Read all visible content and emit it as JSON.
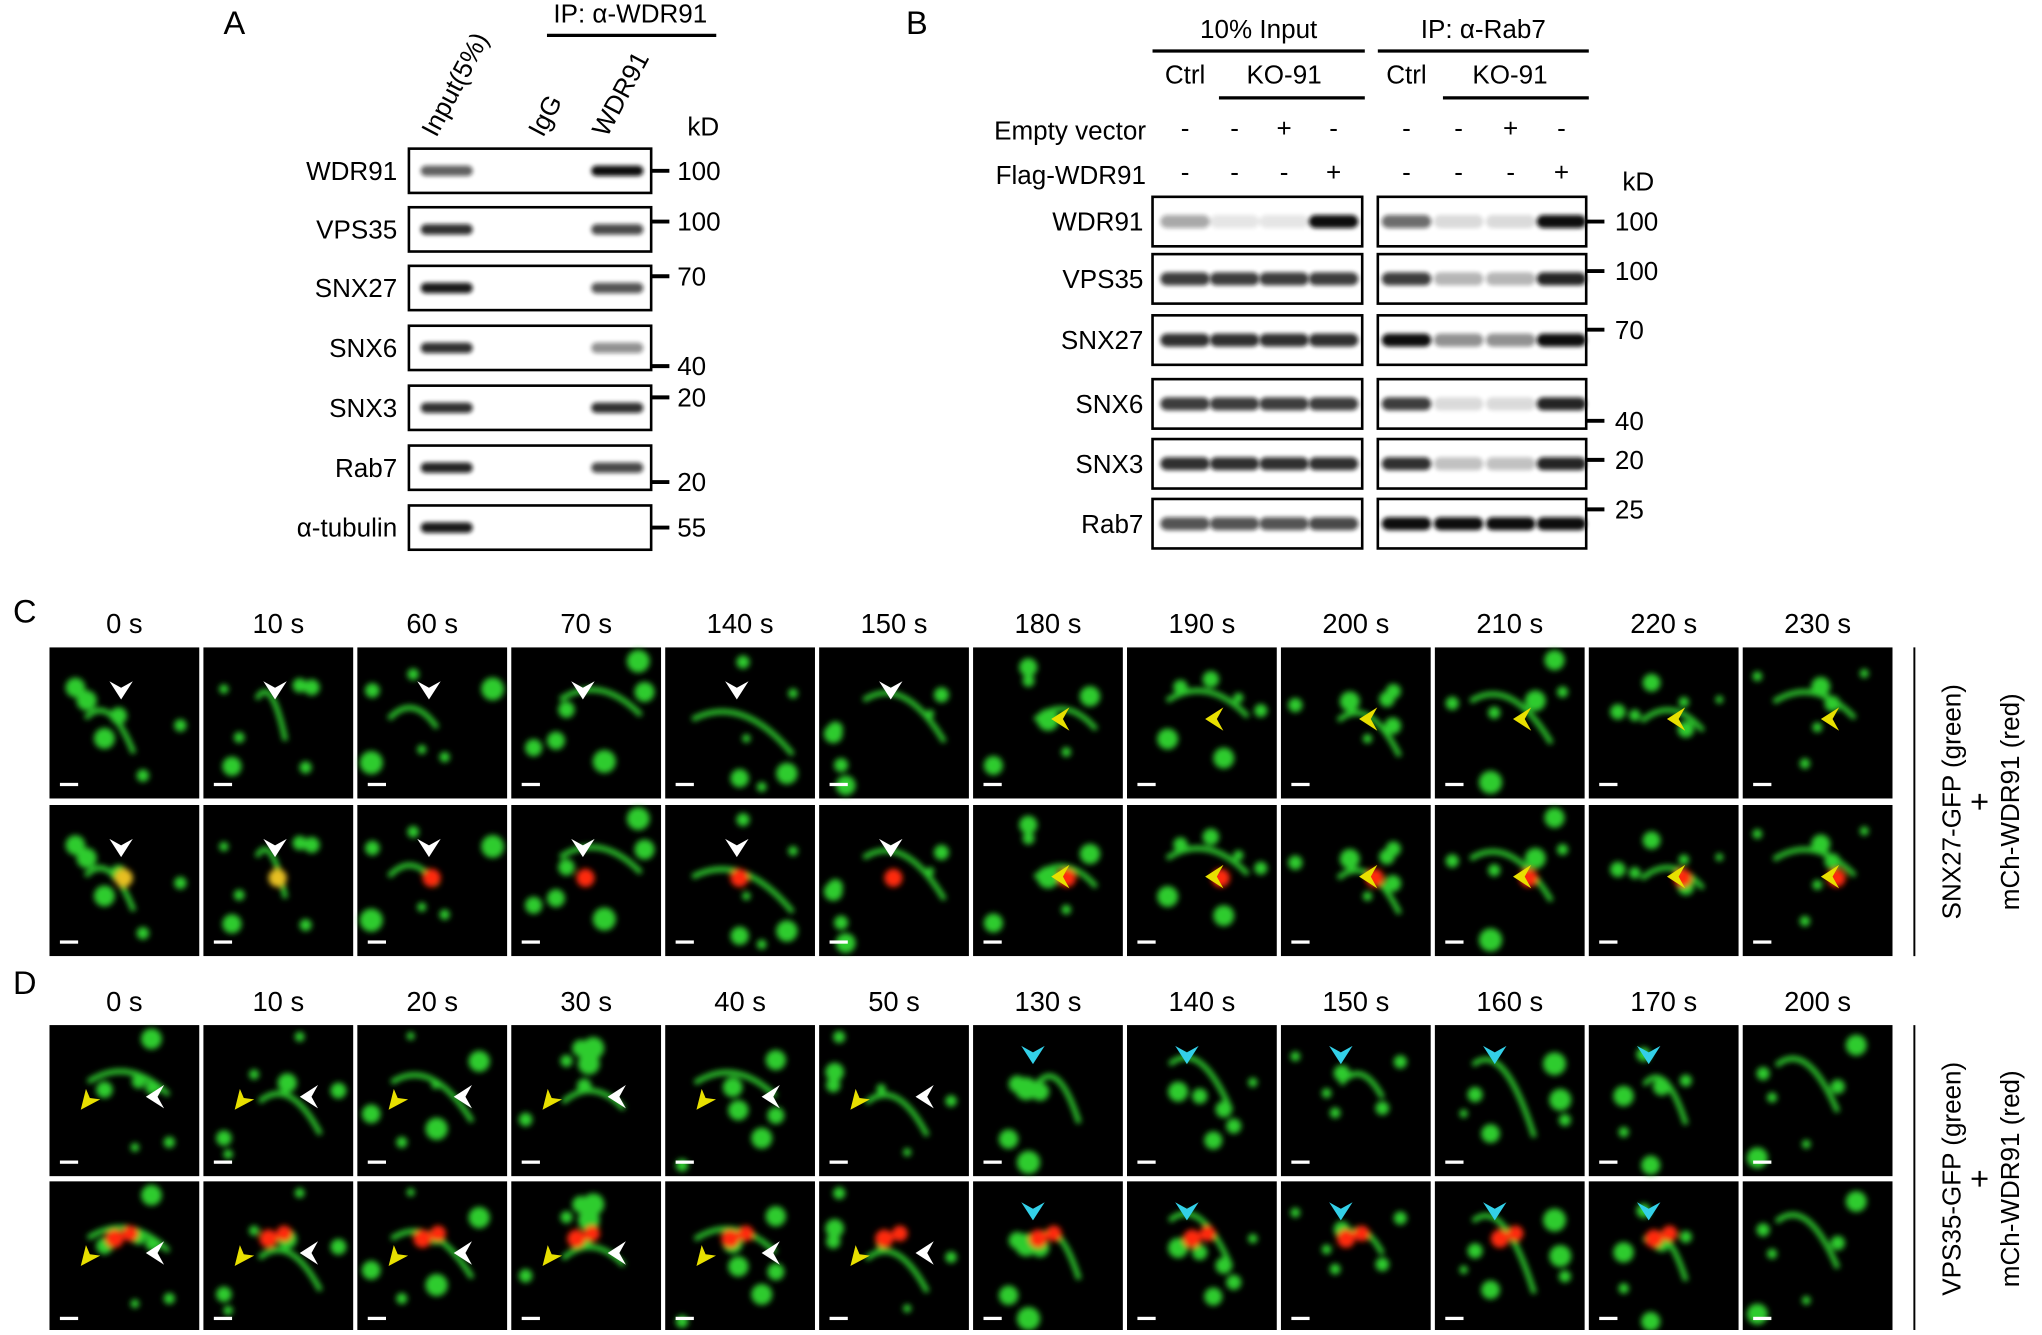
{
  "panel_a": {
    "label": "A",
    "ip_label": "IP: α-WDR91",
    "lanes": [
      "Input(5%)",
      "IgG",
      "WDR91"
    ],
    "kd_label": "kD",
    "rows": [
      {
        "protein": "WDR91",
        "marker": "100"
      },
      {
        "protein": "VPS35",
        "marker": "100"
      },
      {
        "protein": "SNX27",
        "marker": "70"
      },
      {
        "protein": "SNX6",
        "marker": "40"
      },
      {
        "protein": "SNX3",
        "marker": "20"
      },
      {
        "protein": "Rab7",
        "marker": "20"
      },
      {
        "protein": "α-tubulin",
        "marker": "55"
      }
    ]
  },
  "panel_b": {
    "label": "B",
    "groups": [
      {
        "title": "10% Input",
        "conditions": [
          "Ctrl",
          "KO-91"
        ]
      },
      {
        "title": "IP: α-Rab7",
        "conditions": [
          "Ctrl",
          "KO-91"
        ]
      }
    ],
    "treatments": [
      {
        "name": "Empty vector",
        "signs": [
          "-",
          "-",
          "+",
          "-",
          "-",
          "-",
          "+",
          "-"
        ]
      },
      {
        "name": "Flag-WDR91",
        "signs": [
          "-",
          "-",
          "-",
          "+",
          "-",
          "-",
          "-",
          "+"
        ]
      }
    ],
    "kd_label": "kD",
    "rows": [
      {
        "protein": "WDR91",
        "marker": "100"
      },
      {
        "protein": "VPS35",
        "marker": "100"
      },
      {
        "protein": "SNX27",
        "marker": "70"
      },
      {
        "protein": "SNX6",
        "marker": "40"
      },
      {
        "protein": "SNX3",
        "marker": "20"
      },
      {
        "protein": "Rab7",
        "marker": "25"
      }
    ]
  },
  "panel_c": {
    "label": "C",
    "times": [
      "0 s",
      "10 s",
      "60 s",
      "70 s",
      "140 s",
      "150 s",
      "180 s",
      "190 s",
      "200 s",
      "210 s",
      "220 s",
      "230 s"
    ],
    "channels": [
      "SNX27-GFP  (green)",
      "+",
      "mCh-WDR91  (red)"
    ]
  },
  "panel_d": {
    "label": "D",
    "times": [
      "0 s",
      "10 s",
      "20 s",
      "30 s",
      "40 s",
      "50 s",
      "130 s",
      "140 s",
      "150 s",
      "160 s",
      "170 s",
      "200 s"
    ],
    "channels": [
      "VPS35-GFP (green)",
      "+",
      "mCh-WDR91  (red)"
    ]
  }
}
